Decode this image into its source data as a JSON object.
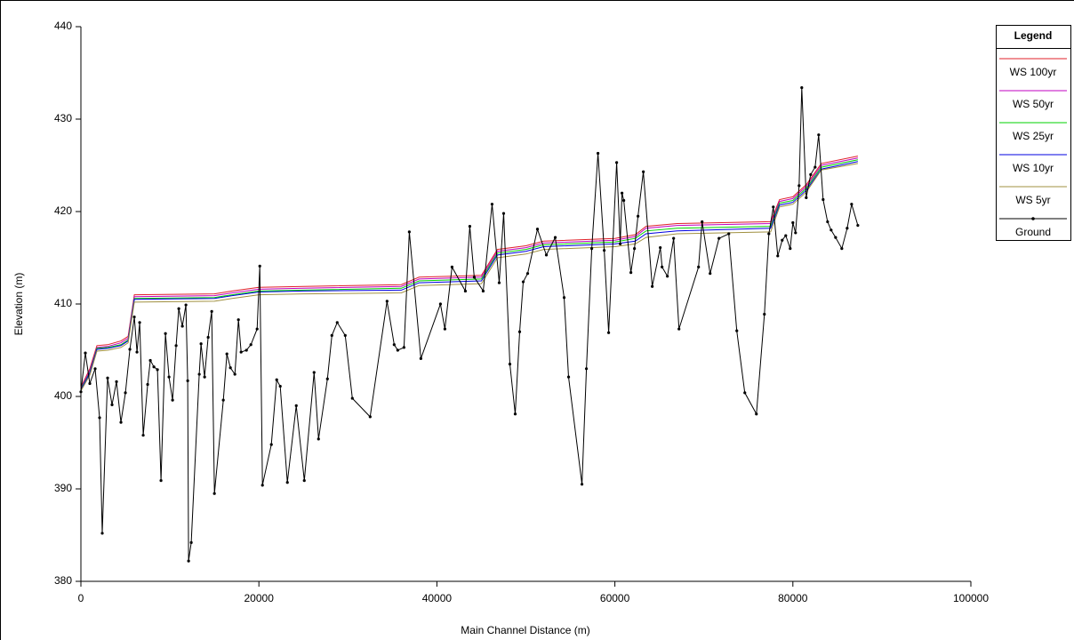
{
  "chart_data": {
    "type": "line",
    "xlabel": "Main Channel Distance (m)",
    "ylabel": "Elevation (m)",
    "legend_title": "Legend",
    "legend": "right",
    "xlim": [
      0,
      100000
    ],
    "xticks": [
      0,
      20000,
      40000,
      60000,
      80000,
      100000
    ],
    "ylim": [
      380,
      440
    ],
    "yticks": [
      380,
      390,
      400,
      410,
      420,
      430,
      440
    ],
    "series": [
      {
        "name": "WS 100yr",
        "color": "#e0202a",
        "x": [
          0,
          1000,
          1800,
          3000,
          4500,
          5300,
          6000,
          15000,
          17000,
          20000,
          25000,
          36000,
          38000,
          45000,
          46800,
          50000,
          52000,
          60000,
          62300,
          63500,
          67000,
          77500,
          78500,
          80000,
          81500,
          83200,
          87300
        ],
        "values": [
          401,
          403,
          405.5,
          405.6,
          406,
          406.5,
          411,
          411.1,
          411.4,
          411.8,
          411.9,
          412.1,
          412.9,
          413.1,
          415.9,
          416.3,
          416.8,
          417.1,
          417.5,
          418.4,
          418.7,
          418.9,
          421.3,
          421.6,
          422.9,
          425.2,
          426
        ]
      },
      {
        "name": "WS 50yr",
        "color": "#c000c0",
        "x": [
          0,
          1000,
          1800,
          3000,
          4500,
          5300,
          6000,
          15000,
          17000,
          20000,
          25000,
          36000,
          38000,
          45000,
          46800,
          50000,
          52000,
          60000,
          62300,
          63500,
          67000,
          77500,
          78500,
          80000,
          81500,
          83200,
          87300
        ],
        "values": [
          400.9,
          402.8,
          405.3,
          405.4,
          405.8,
          406.3,
          410.8,
          410.9,
          411.2,
          411.6,
          411.7,
          411.9,
          412.7,
          412.9,
          415.7,
          416.1,
          416.6,
          416.9,
          417.3,
          418.2,
          418.5,
          418.7,
          421.1,
          421.4,
          422.7,
          425,
          425.8
        ]
      },
      {
        "name": "WS 25yr",
        "color": "#00d000",
        "x": [
          0,
          1000,
          1800,
          3000,
          4500,
          5300,
          6000,
          15000,
          17000,
          20000,
          25000,
          36000,
          38000,
          45000,
          46800,
          50000,
          52000,
          60000,
          62300,
          63500,
          67000,
          77500,
          78500,
          80000,
          81500,
          83200,
          87300
        ],
        "values": [
          400.8,
          402.6,
          405.2,
          405.3,
          405.6,
          406.1,
          410.6,
          410.7,
          411,
          411.4,
          411.5,
          411.7,
          412.5,
          412.7,
          415.5,
          415.9,
          416.4,
          416.7,
          417.1,
          417.9,
          418.2,
          418.4,
          420.9,
          421.2,
          422.5,
          424.8,
          425.6
        ]
      },
      {
        "name": "WS 10yr",
        "color": "#0000e0",
        "x": [
          0,
          1000,
          1800,
          3000,
          4500,
          5300,
          6000,
          15000,
          17000,
          20000,
          25000,
          36000,
          38000,
          45000,
          46800,
          50000,
          52000,
          60000,
          62300,
          63500,
          67000,
          77500,
          78500,
          80000,
          81500,
          83200,
          87300
        ],
        "values": [
          400.7,
          402.5,
          405.1,
          405.2,
          405.5,
          406,
          410.5,
          410.6,
          410.9,
          411.3,
          411.4,
          411.5,
          412.3,
          412.5,
          415.3,
          415.7,
          416.2,
          416.5,
          416.8,
          417.6,
          417.9,
          418.2,
          420.7,
          421,
          422.3,
          424.6,
          425.4
        ]
      },
      {
        "name": "WS 5yr",
        "color": "#a09040",
        "x": [
          0,
          1000,
          1800,
          3000,
          4500,
          5300,
          6000,
          15000,
          17000,
          20000,
          25000,
          36000,
          38000,
          45000,
          46800,
          50000,
          52000,
          60000,
          62300,
          63500,
          67000,
          77500,
          78500,
          80000,
          81500,
          83200,
          87300
        ],
        "values": [
          400.6,
          402.3,
          404.9,
          405,
          405.3,
          405.8,
          410.2,
          410.3,
          410.6,
          411,
          411.1,
          411.2,
          412,
          412.2,
          415,
          415.4,
          415.9,
          416.2,
          416.5,
          417.2,
          417.6,
          417.8,
          420.5,
          420.8,
          422.1,
          424.5,
          425.2
        ]
      },
      {
        "name": "Ground",
        "color": "#000000",
        "marker": true,
        "x": [
          0,
          500,
          1000,
          1600,
          2100,
          2400,
          3000,
          3500,
          4000,
          4500,
          5000,
          5500,
          6000,
          6300,
          6600,
          7000,
          7500,
          7800,
          8200,
          8600,
          9000,
          9500,
          9900,
          10300,
          10700,
          11000,
          11400,
          11800,
          12000,
          12100,
          12400,
          13300,
          13500,
          13900,
          14300,
          14700,
          15000,
          16000,
          16400,
          16800,
          17300,
          17700,
          18000,
          18600,
          19100,
          19800,
          20100,
          20400,
          21400,
          22000,
          22400,
          23200,
          24200,
          25100,
          26200,
          26700,
          27700,
          28200,
          28800,
          29700,
          30500,
          32500,
          34400,
          35200,
          35600,
          36300,
          36900,
          38200,
          40400,
          40900,
          41700,
          43200,
          43700,
          44200,
          45200,
          46200,
          47000,
          47500,
          48200,
          48800,
          49300,
          49700,
          50200,
          51300,
          52300,
          53300,
          54300,
          54800,
          56300,
          56800,
          57400,
          58100,
          58800,
          59300,
          60200,
          60600,
          60800,
          61000,
          61800,
          62200,
          62600,
          63200,
          64200,
          65100,
          65300,
          65900,
          66600,
          67200,
          69400,
          69800,
          70700,
          71700,
          72800,
          73700,
          74600,
          75900,
          76800,
          77300,
          77800,
          78300,
          78800,
          79200,
          79700,
          80000,
          80300,
          80700,
          81000,
          81500,
          82000,
          82500,
          82900,
          83400,
          83900,
          84300,
          84800,
          85500,
          86100,
          86600,
          87300
        ],
        "values": [
          400.5,
          404.7,
          401.4,
          403,
          397.7,
          385.2,
          402,
          399.1,
          401.6,
          397.2,
          400.4,
          405.1,
          408.6,
          404.8,
          408,
          395.8,
          401.3,
          403.9,
          403.2,
          402.9,
          390.9,
          406.8,
          402.1,
          399.6,
          405.5,
          409.5,
          407.6,
          409.9,
          401.7,
          382.2,
          384.2,
          402.4,
          405.7,
          402.1,
          406.4,
          409.2,
          389.5,
          399.6,
          404.6,
          403.1,
          402.4,
          408.3,
          404.8,
          405,
          405.6,
          407.3,
          414.1,
          390.4,
          394.8,
          401.8,
          401.1,
          390.7,
          399,
          390.9,
          402.6,
          395.4,
          401.9,
          406.6,
          408,
          406.6,
          399.8,
          397.8,
          410.3,
          405.6,
          405,
          405.3,
          417.8,
          404.1,
          410,
          407.3,
          414,
          411.4,
          418.4,
          412.9,
          411.4,
          420.8,
          412.3,
          419.8,
          403.5,
          398.1,
          407,
          412.4,
          413.3,
          418.1,
          415.3,
          417.2,
          410.7,
          402.1,
          390.5,
          403,
          416,
          426.3,
          415.8,
          406.9,
          425.3,
          416.5,
          422,
          421.2,
          413.4,
          416,
          419.5,
          424.3,
          411.9,
          416.1,
          414,
          413,
          417.1,
          407.3,
          414,
          418.9,
          413.3,
          417.1,
          417.6,
          407.1,
          400.4,
          398.1,
          408.9,
          417.6,
          420.5,
          415.2,
          416.9,
          417.4,
          416,
          418.8,
          417.7,
          422.8,
          433.4,
          421.5,
          424,
          424.8,
          428.3,
          421.3,
          418.9,
          418,
          417.2,
          416,
          418.2,
          420.8,
          418.5
        ]
      }
    ]
  }
}
